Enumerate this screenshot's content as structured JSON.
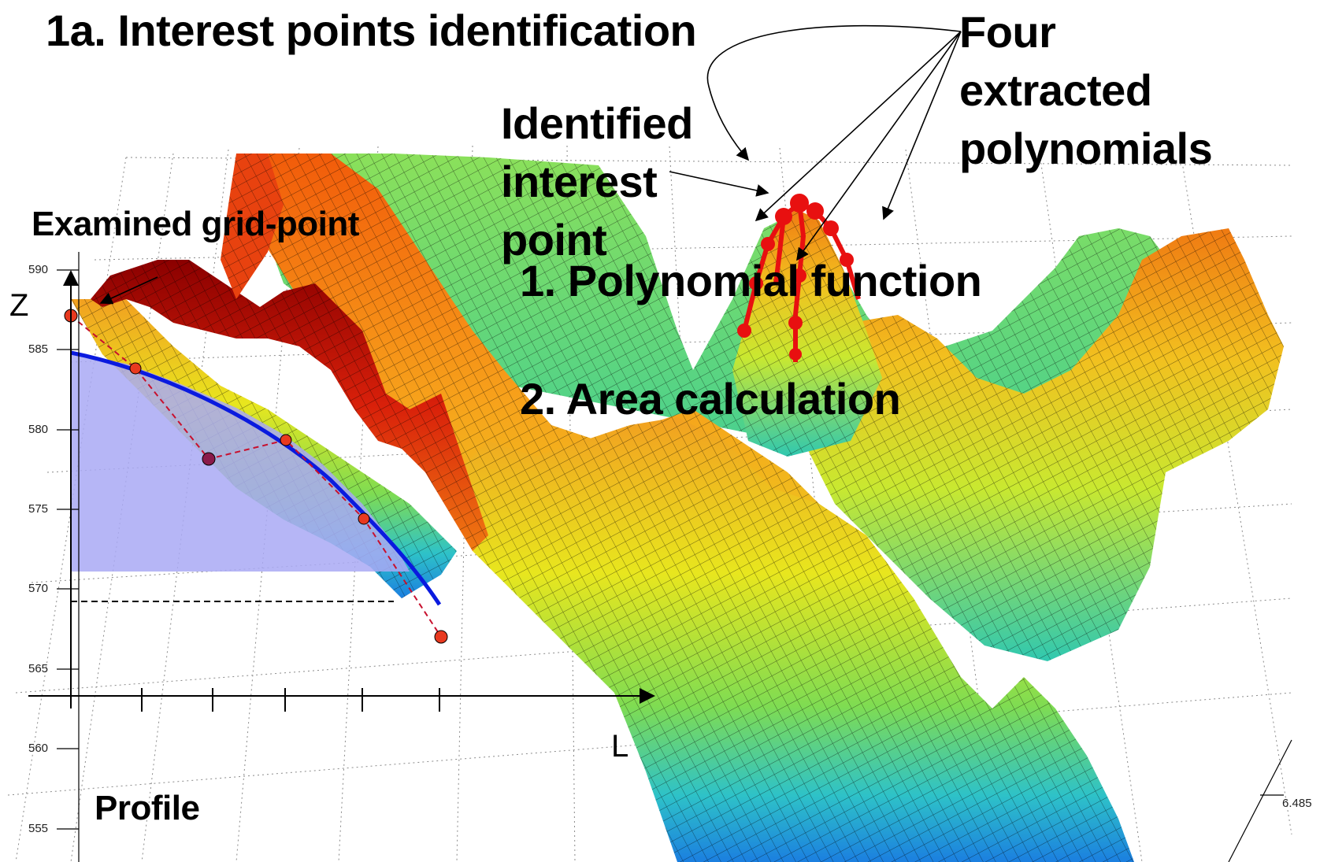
{
  "title": "1a. Interest points identification",
  "labels": {
    "four_line1": "Four",
    "four_line2": "extracted",
    "four_line3": "polynomials",
    "identified_line1": "Identified",
    "identified_line2": "interest",
    "identified_line3": "point",
    "examined": "Examined grid-point",
    "polynomial": "1.  Polynomial function",
    "area": "2.  Area calculation",
    "profile": "Profile",
    "z_axis": "Z",
    "l_axis": "L"
  },
  "z_ticks": [
    "590",
    "585",
    "580",
    "575",
    "570",
    "565",
    "560",
    "555"
  ],
  "y_tick_right": "6.485",
  "colors": {
    "fit_curve": "#0a1adf",
    "area_fill": "#a9a9f5",
    "profile_points": "#e8391f",
    "interest_points": "#e81010",
    "profile_line": "#c8102e"
  }
}
